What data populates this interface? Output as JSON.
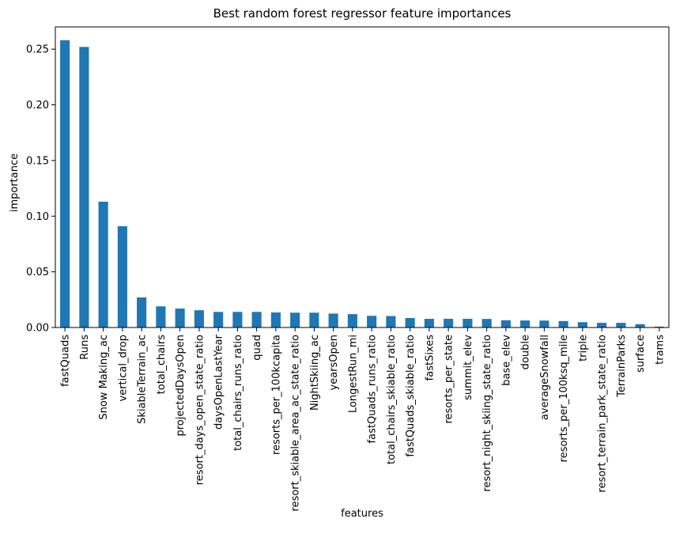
{
  "chart_data": {
    "type": "bar",
    "title": "Best random forest regressor feature importances",
    "xlabel": "features",
    "ylabel": "importance",
    "ylim": [
      0,
      0.27
    ],
    "yticks": [
      0.0,
      0.05,
      0.1,
      0.15,
      0.2,
      0.25
    ],
    "ytick_labels": [
      "0.00",
      "0.05",
      "0.10",
      "0.15",
      "0.20",
      "0.25"
    ],
    "color": "#1f77b4",
    "grid": false,
    "categories": [
      "fastQuads",
      "Runs",
      "Snow Making_ac",
      "vertical_drop",
      "SkiableTerrain_ac",
      "total_chairs",
      "projectedDaysOpen",
      "resort_days_open_state_ratio",
      "daysOpenLastYear",
      "total_chairs_runs_ratio",
      "quad",
      "resorts_per_100kcapita",
      "resort_skiable_area_ac_state_ratio",
      "NightSkiing_ac",
      "yearsOpen",
      "LongestRun_mi",
      "fastQuads_runs_ratio",
      "total_chairs_skiable_ratio",
      "fastQuads_skiable_ratio",
      "fastSixes",
      "resorts_per_state",
      "summit_elev",
      "resort_night_skiing_state_ratio",
      "base_elev",
      "double",
      "averageSnowfall",
      "resorts_per_100ksq_mile",
      "triple",
      "resort_terrain_park_state_ratio",
      "TerrainParks",
      "surface",
      "trams"
    ],
    "values": [
      0.258,
      0.252,
      0.113,
      0.091,
      0.027,
      0.019,
      0.017,
      0.0155,
      0.014,
      0.014,
      0.014,
      0.0135,
      0.0133,
      0.0133,
      0.0125,
      0.012,
      0.0105,
      0.0103,
      0.0085,
      0.0078,
      0.0078,
      0.0078,
      0.0077,
      0.0065,
      0.0063,
      0.0062,
      0.0058,
      0.0048,
      0.0042,
      0.0042,
      0.003,
      0.0008
    ]
  }
}
